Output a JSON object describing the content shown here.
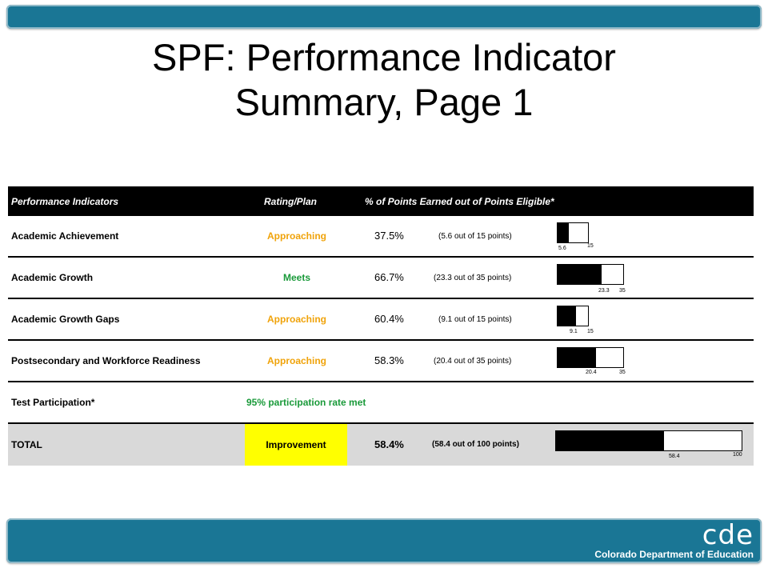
{
  "title": {
    "line1": "SPF: Performance Indicator",
    "line2": "Summary, Page 1"
  },
  "table": {
    "headers": {
      "indicators": "Performance Indicators",
      "rating": "Rating/Plan",
      "points": "% of Points Earned out of Points Eligible*"
    },
    "rows": [
      {
        "indicator": "Academic Achievement",
        "rating": "Approaching",
        "percent": "37.5%",
        "points_text": "(5.6 out of 15 points)",
        "earned": 5.6,
        "eligible": 15,
        "earned_label": "5.6",
        "eligible_label": "15"
      },
      {
        "indicator": "Academic Growth",
        "rating": "Meets",
        "percent": "66.7%",
        "points_text": "(23.3 out of 35 points)",
        "earned": 23.3,
        "eligible": 35,
        "earned_label": "23.3",
        "eligible_label": "35"
      },
      {
        "indicator": "Academic Growth Gaps",
        "rating": "Approaching",
        "percent": "60.4%",
        "points_text": "(9.1 out of 15 points)",
        "earned": 9.1,
        "eligible": 15,
        "earned_label": "9.1",
        "eligible_label": "15"
      },
      {
        "indicator": "Postsecondary and Workforce Readiness",
        "rating": "Approaching",
        "percent": "58.3%",
        "points_text": "(20.4 out of 35 points)",
        "earned": 20.4,
        "eligible": 35,
        "earned_label": "20.4",
        "eligible_label": "35"
      }
    ],
    "participation": {
      "label": "Test Participation*",
      "value": "95% participation rate met"
    },
    "total": {
      "label": "TOTAL",
      "rating": "Improvement",
      "percent": "58.4%",
      "points_text": "(58.4 out of 100 points)",
      "earned": 58.4,
      "eligible": 100,
      "earned_label": "58.4",
      "eligible_label": "100"
    }
  },
  "logo": {
    "mark": "cde",
    "name": "Colorado Department of Education"
  },
  "colors": {
    "bar": "#1a7695",
    "approaching": "#f0a30a",
    "meets": "#1a9a3a",
    "improvement_bg": "#ffff00",
    "total_bg": "#d9d9d9"
  }
}
